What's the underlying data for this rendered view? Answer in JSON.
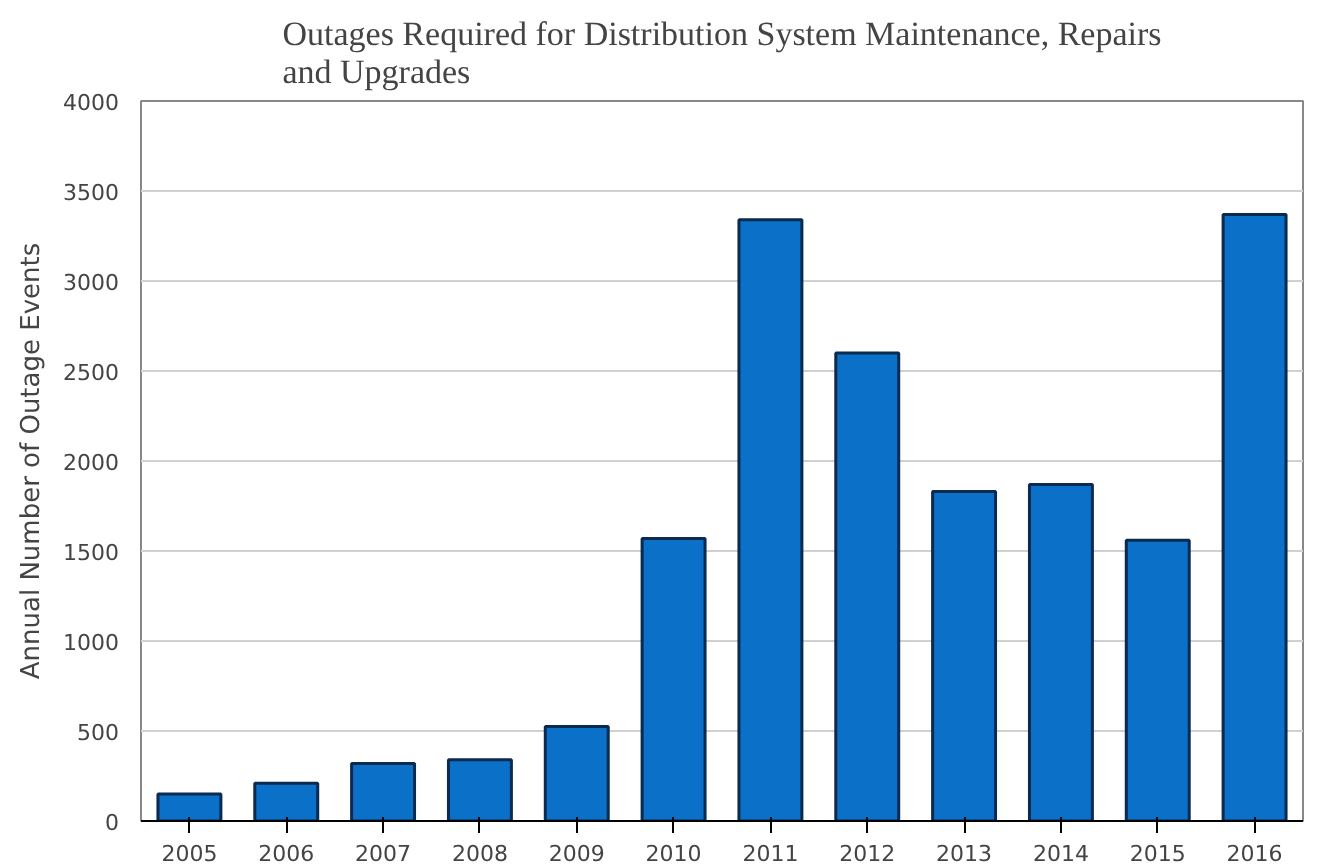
{
  "chart_data": {
    "type": "bar",
    "title": "Outages Required for Distribution System Maintenance, Repairs\nand Upgrades",
    "ylabel": "Annual Number of Outage Events",
    "categories": [
      "2005",
      "2006",
      "2007",
      "2008",
      "2009",
      "2010",
      "2011",
      "2012",
      "2013",
      "2014",
      "2015",
      "2016"
    ],
    "values": [
      150,
      210,
      320,
      340,
      525,
      1570,
      3340,
      2600,
      1830,
      1870,
      1560,
      3370
    ],
    "color": "#0a70c8",
    "ylim": [
      0,
      4000
    ],
    "yticks": [
      0,
      500,
      1000,
      1500,
      2000,
      2500,
      3000,
      3500,
      4000
    ],
    "grid": "y"
  }
}
